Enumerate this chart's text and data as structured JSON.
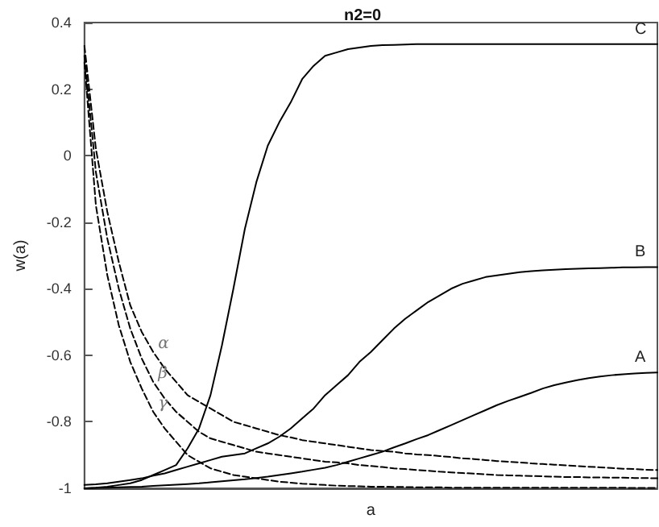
{
  "chart_data": {
    "type": "line",
    "title": "n2=0",
    "xlabel": "a",
    "ylabel": "w(a)",
    "categories": [
      null,
      null,
      null,
      null,
      null,
      null,
      null,
      null,
      null,
      null,
      null,
      null,
      null,
      null,
      null,
      null,
      null,
      null,
      null,
      null,
      null,
      null,
      null,
      null,
      null,
      null,
      null,
      null,
      null,
      null,
      null,
      null,
      null,
      null,
      null,
      null,
      null,
      null,
      null,
      null,
      null,
      null,
      null,
      null,
      null,
      null,
      null,
      null,
      null,
      null,
      null
    ],
    "ylim": [
      -1,
      0.4
    ],
    "yticks": [
      -1,
      -0.8,
      -0.6,
      -0.4,
      -0.2,
      0,
      0.2,
      0.4
    ],
    "tick_labels": "y",
    "grid": false,
    "legend": false,
    "marker": "none",
    "series": [
      {
        "name": "C",
        "color": "#000000",
        "line_style": "solid",
        "values": [
          -1,
          -0.998,
          -0.995,
          -0.99,
          -0.985,
          -0.975,
          -0.96,
          -0.945,
          -0.93,
          -0.88,
          -0.82,
          -0.72,
          -0.57,
          -0.4,
          -0.22,
          -0.08,
          0.03,
          0.1,
          0.16,
          0.23,
          0.27,
          0.3,
          0.31,
          0.32,
          0.325,
          0.33,
          0.332,
          0.333,
          0.334,
          0.335,
          0.335,
          0.335,
          0.335,
          0.335,
          0.335,
          0.335,
          0.335,
          0.335,
          0.335,
          0.335,
          0.335,
          0.335,
          0.335,
          0.335,
          0.335,
          0.335,
          0.335,
          0.335,
          0.335,
          0.335,
          0.335
        ]
      },
      {
        "name": "B",
        "color": "#000000",
        "line_style": "solid",
        "values": [
          -0.99,
          -0.988,
          -0.985,
          -0.98,
          -0.975,
          -0.97,
          -0.962,
          -0.955,
          -0.945,
          -0.935,
          -0.925,
          -0.915,
          -0.905,
          -0.9,
          -0.895,
          -0.88,
          -0.865,
          -0.845,
          -0.82,
          -0.79,
          -0.76,
          -0.72,
          -0.69,
          -0.66,
          -0.62,
          -0.59,
          -0.555,
          -0.52,
          -0.49,
          -0.465,
          -0.44,
          -0.42,
          -0.4,
          -0.385,
          -0.375,
          -0.365,
          -0.36,
          -0.355,
          -0.35,
          -0.347,
          -0.345,
          -0.343,
          -0.341,
          -0.34,
          -0.339,
          -0.338,
          -0.337,
          -0.336,
          -0.336,
          -0.335,
          -0.335
        ]
      },
      {
        "name": "A",
        "color": "#000000",
        "line_style": "solid",
        "values": [
          -1,
          -0.999,
          -0.998,
          -0.997,
          -0.996,
          -0.995,
          -0.993,
          -0.991,
          -0.989,
          -0.987,
          -0.985,
          -0.982,
          -0.979,
          -0.976,
          -0.973,
          -0.969,
          -0.965,
          -0.96,
          -0.955,
          -0.95,
          -0.944,
          -0.938,
          -0.93,
          -0.92,
          -0.91,
          -0.9,
          -0.89,
          -0.877,
          -0.865,
          -0.852,
          -0.84,
          -0.825,
          -0.81,
          -0.795,
          -0.78,
          -0.765,
          -0.75,
          -0.737,
          -0.725,
          -0.713,
          -0.7,
          -0.69,
          -0.682,
          -0.675,
          -0.669,
          -0.664,
          -0.66,
          -0.657,
          -0.655,
          -0.653,
          -0.652
        ]
      },
      {
        "name": "α",
        "color": "#000000",
        "line_style": "dashed",
        "values": [
          0.33,
          0.02,
          -0.17,
          -0.32,
          -0.45,
          -0.53,
          -0.59,
          -0.64,
          -0.68,
          -0.72,
          -0.74,
          -0.76,
          -0.78,
          -0.8,
          -0.81,
          -0.82,
          -0.83,
          -0.84,
          -0.847,
          -0.855,
          -0.86,
          -0.865,
          -0.87,
          -0.875,
          -0.88,
          -0.885,
          -0.888,
          -0.89,
          -0.895,
          -0.898,
          -0.9,
          -0.903,
          -0.906,
          -0.91,
          -0.912,
          -0.915,
          -0.918,
          -0.92,
          -0.922,
          -0.925,
          -0.927,
          -0.929,
          -0.931,
          -0.933,
          -0.935,
          -0.937,
          -0.939,
          -0.941,
          -0.942,
          -0.944,
          -0.945
        ]
      },
      {
        "name": "β",
        "color": "#000000",
        "line_style": "dashed",
        "values": [
          0.3,
          -0.05,
          -0.25,
          -0.4,
          -0.52,
          -0.61,
          -0.68,
          -0.73,
          -0.77,
          -0.8,
          -0.83,
          -0.85,
          -0.86,
          -0.87,
          -0.88,
          -0.89,
          -0.895,
          -0.9,
          -0.905,
          -0.91,
          -0.915,
          -0.92,
          -0.922,
          -0.925,
          -0.93,
          -0.933,
          -0.936,
          -0.94,
          -0.942,
          -0.945,
          -0.947,
          -0.95,
          -0.952,
          -0.954,
          -0.956,
          -0.958,
          -0.96,
          -0.961,
          -0.962,
          -0.963,
          -0.964,
          -0.965,
          -0.966,
          -0.966,
          -0.967,
          -0.967,
          -0.968,
          -0.968,
          -0.969,
          -0.969,
          -0.97
        ]
      },
      {
        "name": "γ",
        "color": "#000000",
        "line_style": "dashed",
        "values": [
          0.28,
          -0.15,
          -0.36,
          -0.51,
          -0.62,
          -0.7,
          -0.77,
          -0.82,
          -0.86,
          -0.9,
          -0.92,
          -0.94,
          -0.95,
          -0.96,
          -0.965,
          -0.97,
          -0.975,
          -0.98,
          -0.983,
          -0.986,
          -0.988,
          -0.99,
          -0.992,
          -0.993,
          -0.994,
          -0.995,
          -0.995,
          -0.996,
          -0.996,
          -0.997,
          -0.997,
          -0.997,
          -0.998,
          -0.998,
          -0.998,
          -0.998,
          -0.998,
          -0.998,
          -0.998,
          -0.998,
          -0.998,
          -0.998,
          -0.998,
          -0.998,
          -0.998,
          -0.998,
          -0.998,
          -0.998,
          -0.999,
          -0.999,
          -0.999
        ]
      }
    ]
  }
}
